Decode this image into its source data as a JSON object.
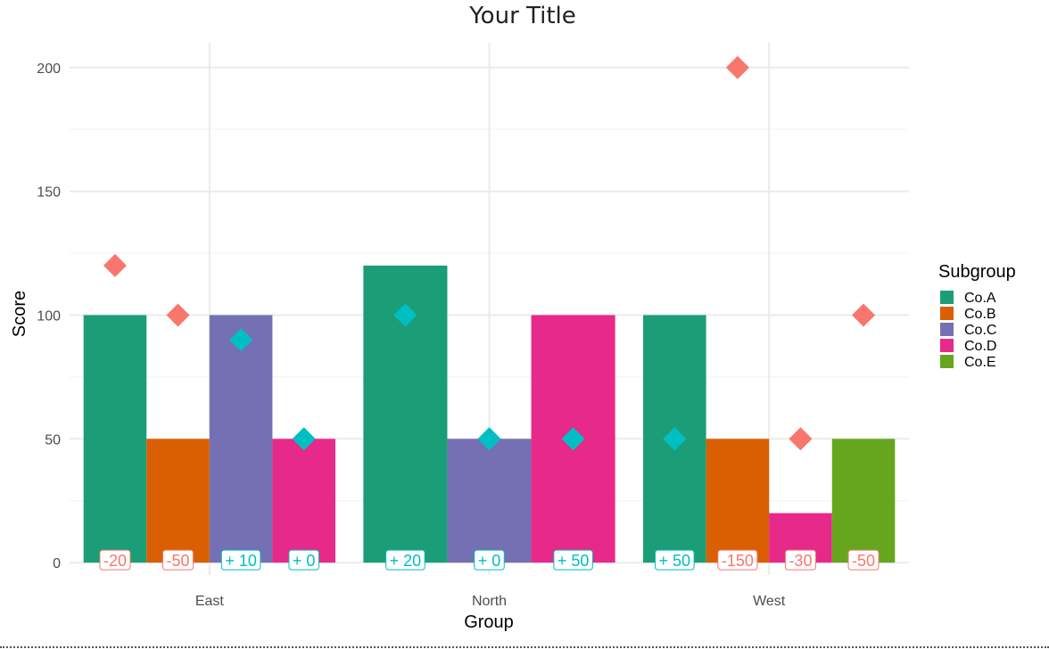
{
  "chart_data": {
    "type": "bar",
    "title": "Your Title",
    "xlabel": "Group",
    "ylabel": "Score",
    "ylim": [
      -5,
      210
    ],
    "yticks": [
      0,
      50,
      100,
      150,
      200
    ],
    "grid": true,
    "legend": {
      "title": "Subgroup",
      "placement": "right",
      "entries": [
        {
          "name": "Co.A",
          "color": "#1b9e77"
        },
        {
          "name": "Co.B",
          "color": "#d95f02"
        },
        {
          "name": "Co.C",
          "color": "#7570b3"
        },
        {
          "name": "Co.D",
          "color": "#e7298a"
        },
        {
          "name": "Co.E",
          "color": "#66a61e"
        }
      ]
    },
    "groups": [
      {
        "name": "East",
        "bars": [
          {
            "subgroup": "Co.A",
            "value": 100,
            "target": 120,
            "delta": "-20"
          },
          {
            "subgroup": "Co.B",
            "value": 50,
            "target": 100,
            "delta": "-50"
          },
          {
            "subgroup": "Co.C",
            "value": 100,
            "target": 90,
            "delta": "+ 10"
          },
          {
            "subgroup": "Co.D",
            "value": 50,
            "target": 50,
            "delta": "+ 0"
          }
        ]
      },
      {
        "name": "North",
        "bars": [
          {
            "subgroup": "Co.A",
            "value": 120,
            "target": 100,
            "delta": "+ 20"
          },
          {
            "subgroup": "Co.C",
            "value": 50,
            "target": 50,
            "delta": "+ 0"
          },
          {
            "subgroup": "Co.D",
            "value": 100,
            "target": 50,
            "delta": "+ 50"
          }
        ]
      },
      {
        "name": "West",
        "bars": [
          {
            "subgroup": "Co.A",
            "value": 100,
            "target": 50,
            "delta": "+ 50"
          },
          {
            "subgroup": "Co.B",
            "value": 50,
            "target": 200,
            "delta": "-150"
          },
          {
            "subgroup": "Co.D",
            "value": 20,
            "target": 50,
            "delta": "-30"
          },
          {
            "subgroup": "Co.E",
            "value": 50,
            "target": 100,
            "delta": "-50"
          }
        ]
      }
    ],
    "status_colors": {
      "negative": "#f8766d",
      "non_negative": "#00bfc4"
    }
  }
}
